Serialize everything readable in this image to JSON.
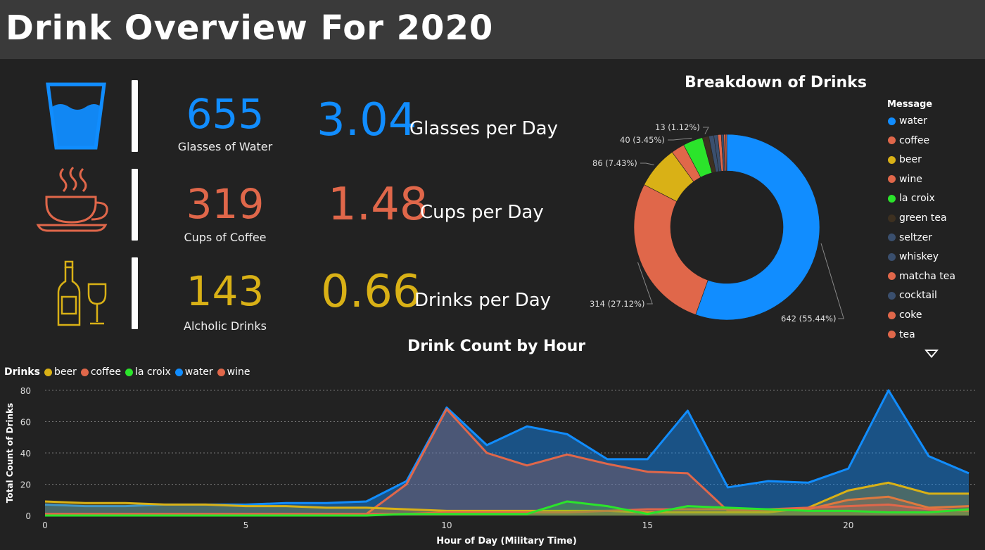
{
  "header": {
    "title": "Drink Overview For 2020"
  },
  "kpis": [
    {
      "count": "655",
      "count_label": "Glasses of Water",
      "rate": "3.04",
      "rate_label": "Glasses per Day",
      "color": "#118DFF",
      "icon": "water-glass-icon"
    },
    {
      "count": "319",
      "count_label": "Cups of Coffee",
      "rate": "1.48",
      "rate_label": "Cups per Day",
      "color": "#E0674A",
      "icon": "coffee-cup-icon"
    },
    {
      "count": "143",
      "count_label": "Alcholic Drinks",
      "rate": "0.66",
      "rate_label": "Drinks per Day",
      "color": "#D9B116",
      "icon": "wine-bottle-icon"
    }
  ],
  "chart_data": [
    {
      "type": "pie",
      "title": "Breakdown of Drinks",
      "legend_title": "Message",
      "legend_position": "right",
      "donut": true,
      "slices": [
        {
          "name": "water",
          "value": 642,
          "label": "642 (55.44%)",
          "color": "#118DFF"
        },
        {
          "name": "coffee",
          "value": 314,
          "label": "314 (27.12%)",
          "color": "#E0674A"
        },
        {
          "name": "beer",
          "value": 86,
          "label": "86 (7.43%)",
          "color": "#D9B116"
        },
        {
          "name": "wine",
          "value": 27,
          "label": "",
          "color": "#E0674A"
        },
        {
          "name": "la croix",
          "value": 40,
          "label": "40 (3.45%)",
          "color": "#2BE42B"
        },
        {
          "name": "green tea",
          "value": 13,
          "label": "13 (1.12%)",
          "color": "#3D3020"
        },
        {
          "name": "seltzer",
          "value": 10,
          "label": "",
          "color": "#3A4F6E"
        },
        {
          "name": "whiskey",
          "value": 8,
          "label": "",
          "color": "#3A4F6E"
        },
        {
          "name": "matcha tea",
          "value": 7,
          "label": "",
          "color": "#E0674A"
        },
        {
          "name": "cocktail",
          "value": 5,
          "label": "",
          "color": "#3A4F6E"
        },
        {
          "name": "coke",
          "value": 4,
          "label": "",
          "color": "#E0674A"
        },
        {
          "name": "tea",
          "value": 2,
          "label": "",
          "color": "#E0674A"
        }
      ]
    },
    {
      "type": "area",
      "title": "Drink Count by Hour",
      "legend_title": "Drinks",
      "legend_position": "top-left",
      "xlabel": "Hour of Day (Military Time)",
      "ylabel": "Total Count of Drinks",
      "xlim": [
        0,
        23
      ],
      "ylim": [
        0,
        80
      ],
      "xticks": [
        0,
        5,
        10,
        15,
        20
      ],
      "yticks": [
        0,
        20,
        40,
        60,
        80
      ],
      "grid": true,
      "x": [
        0,
        1,
        2,
        3,
        4,
        5,
        6,
        7,
        8,
        9,
        10,
        11,
        12,
        13,
        14,
        15,
        16,
        17,
        18,
        19,
        20,
        21,
        22,
        23
      ],
      "series": [
        {
          "name": "beer",
          "color": "#D9B116",
          "values": [
            9,
            8,
            8,
            7,
            7,
            6,
            6,
            5,
            5,
            4,
            3,
            3,
            3,
            3,
            3,
            2,
            2,
            2,
            2,
            5,
            16,
            21,
            14,
            14
          ]
        },
        {
          "name": "coffee",
          "color": "#E0674A",
          "values": [
            1,
            1,
            1,
            1,
            1,
            1,
            1,
            1,
            1,
            20,
            68,
            40,
            32,
            39,
            33,
            28,
            27,
            3,
            3,
            4,
            10,
            12,
            5,
            6
          ]
        },
        {
          "name": "la croix",
          "color": "#2BE42B",
          "values": [
            0,
            0,
            0,
            0,
            0,
            0,
            0,
            0,
            0,
            1,
            1,
            1,
            1,
            9,
            6,
            1,
            6,
            5,
            4,
            3,
            3,
            2,
            2,
            4
          ]
        },
        {
          "name": "water",
          "color": "#118DFF",
          "values": [
            7,
            6,
            6,
            7,
            7,
            7,
            8,
            8,
            9,
            22,
            69,
            45,
            57,
            52,
            36,
            36,
            67,
            18,
            22,
            21,
            30,
            80,
            38,
            27
          ]
        },
        {
          "name": "wine",
          "color": "#E0674A",
          "values": [
            1,
            1,
            1,
            1,
            1,
            1,
            1,
            1,
            1,
            1,
            2,
            2,
            2,
            2,
            3,
            4,
            4,
            4,
            4,
            5,
            6,
            7,
            4,
            3
          ]
        }
      ]
    }
  ]
}
